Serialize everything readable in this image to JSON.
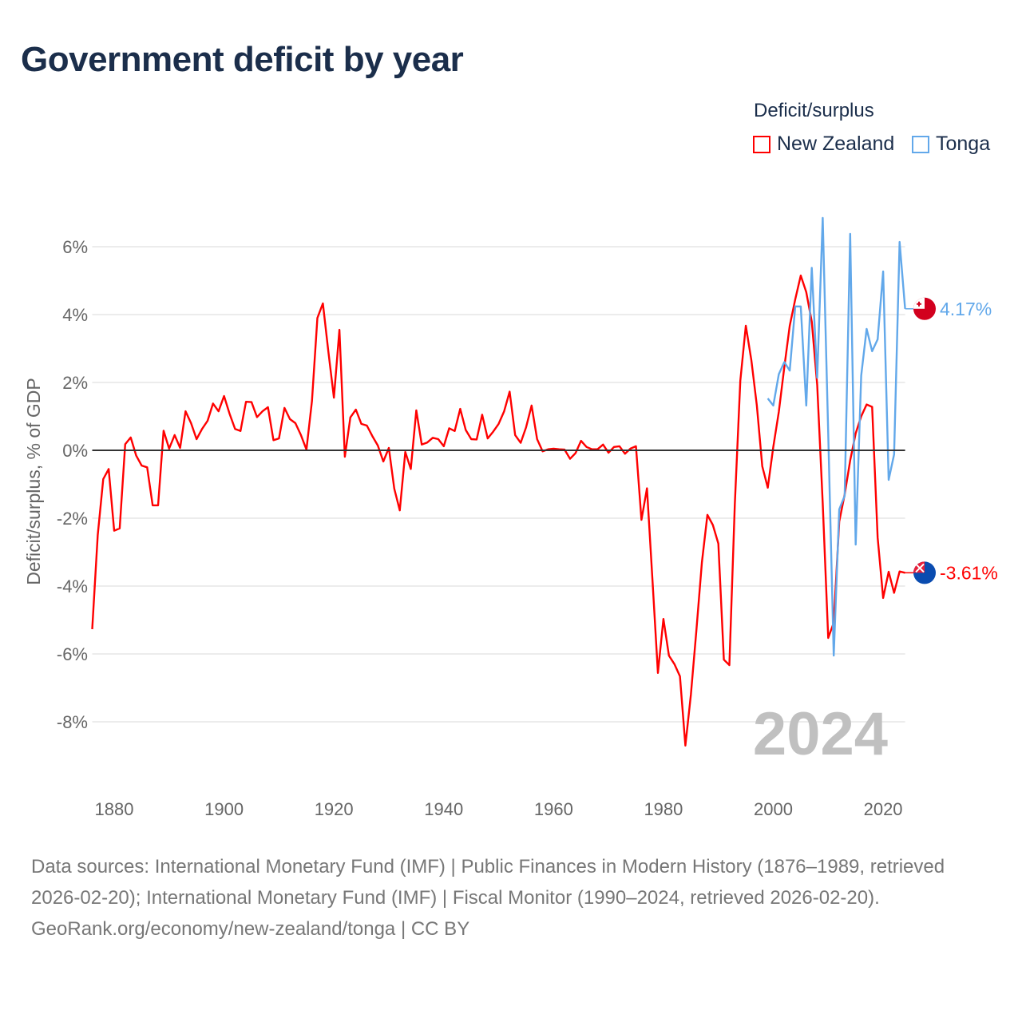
{
  "title": "Government deficit by year",
  "legend": {
    "title": "Deficit/surplus",
    "items": [
      {
        "label": "New Zealand",
        "color": "#ff0000"
      },
      {
        "label": "Tonga",
        "color": "#62a8ea"
      }
    ]
  },
  "footer": {
    "sources": "Data sources: International Monetary Fund (IMF) | Public Finances in Modern History (1876–1989, retrieved 2026-02-20); International Monetary Fund (IMF) | Fiscal Monitor (1990–2024, retrieved 2026-02-20).",
    "credit": "GeoRank.org/economy/new-zealand/tonga | CC BY"
  },
  "chart_data": {
    "type": "line",
    "title": "Government deficit by year",
    "xlabel": "",
    "ylabel": "Deficit/surplus, % of GDP",
    "xlim": [
      1876,
      2024
    ],
    "ylim": [
      -10,
      7
    ],
    "xticks": [
      1880,
      1900,
      1920,
      1940,
      1960,
      1980,
      2000,
      2020
    ],
    "yticks": [
      -8,
      -6,
      -4,
      -2,
      0,
      2,
      4,
      6
    ],
    "ytick_labels": [
      "-8%",
      "-6%",
      "-4%",
      "-2%",
      "0%",
      "2%",
      "4%",
      "6%"
    ],
    "year_label": "2024",
    "series": [
      {
        "name": "New Zealand",
        "color": "#ff0000",
        "end_label": "-3.61%",
        "flag": "new-zealand",
        "start_year": 1876,
        "values": [
          -5.27,
          -2.5,
          -0.85,
          -0.55,
          -2.37,
          -2.3,
          0.18,
          0.38,
          -0.15,
          -0.45,
          -0.5,
          -1.62,
          -1.62,
          0.58,
          0.05,
          0.45,
          0.07,
          1.15,
          0.8,
          0.33,
          0.63,
          0.87,
          1.38,
          1.15,
          1.6,
          1.08,
          0.63,
          0.57,
          1.43,
          1.42,
          0.98,
          1.15,
          1.27,
          0.3,
          0.35,
          1.25,
          0.92,
          0.8,
          0.45,
          0.02,
          1.45,
          3.9,
          4.33,
          2.9,
          1.55,
          3.55,
          -0.19,
          0.97,
          1.2,
          0.78,
          0.73,
          0.42,
          0.14,
          -0.33,
          0.07,
          -1.13,
          -1.77,
          -0.05,
          -0.55,
          1.18,
          0.17,
          0.23,
          0.37,
          0.33,
          0.12,
          0.65,
          0.57,
          1.22,
          0.6,
          0.33,
          0.32,
          1.05,
          0.35,
          0.55,
          0.78,
          1.15,
          1.73,
          0.45,
          0.22,
          0.68,
          1.32,
          0.33,
          -0.03,
          0.03,
          0.05,
          0.03,
          0.02,
          -0.25,
          -0.08,
          0.28,
          0.1,
          0.03,
          0.03,
          0.17,
          -0.07,
          0.1,
          0.12,
          -0.1,
          0.05,
          0.12,
          -2.05,
          -1.12,
          -3.83,
          -6.56,
          -4.97,
          -6.05,
          -6.3,
          -6.66,
          -8.7,
          -7.2,
          -5.3,
          -3.3,
          -1.9,
          -2.2,
          -2.75,
          -6.17,
          -6.33,
          -1.6,
          2.05,
          3.67,
          2.66,
          1.32,
          -0.47,
          -1.1,
          0.1,
          1.13,
          2.45,
          3.67,
          4.45,
          5.15,
          4.66,
          3.79,
          1.93,
          -1.55,
          -5.53,
          -5.08,
          -2.1,
          -1.3,
          -0.3,
          0.5,
          1.0,
          1.35,
          1.28,
          -2.57,
          -4.35,
          -3.58,
          -4.2,
          -3.57,
          -3.61
        ]
      },
      {
        "name": "Tonga",
        "color": "#62a8ea",
        "end_label": "4.17%",
        "flag": "tonga",
        "start_year": 1999,
        "values": [
          1.53,
          1.32,
          2.24,
          2.6,
          2.35,
          4.24,
          4.24,
          1.32,
          5.38,
          2.14,
          6.85,
          0.5,
          -6.05,
          -1.74,
          -1.34,
          6.38,
          -2.78,
          2.2,
          3.58,
          2.92,
          3.27,
          5.27,
          -0.87,
          -0.12,
          6.14,
          4.17
        ]
      }
    ],
    "grid": true,
    "legend_placement": "top-right"
  }
}
